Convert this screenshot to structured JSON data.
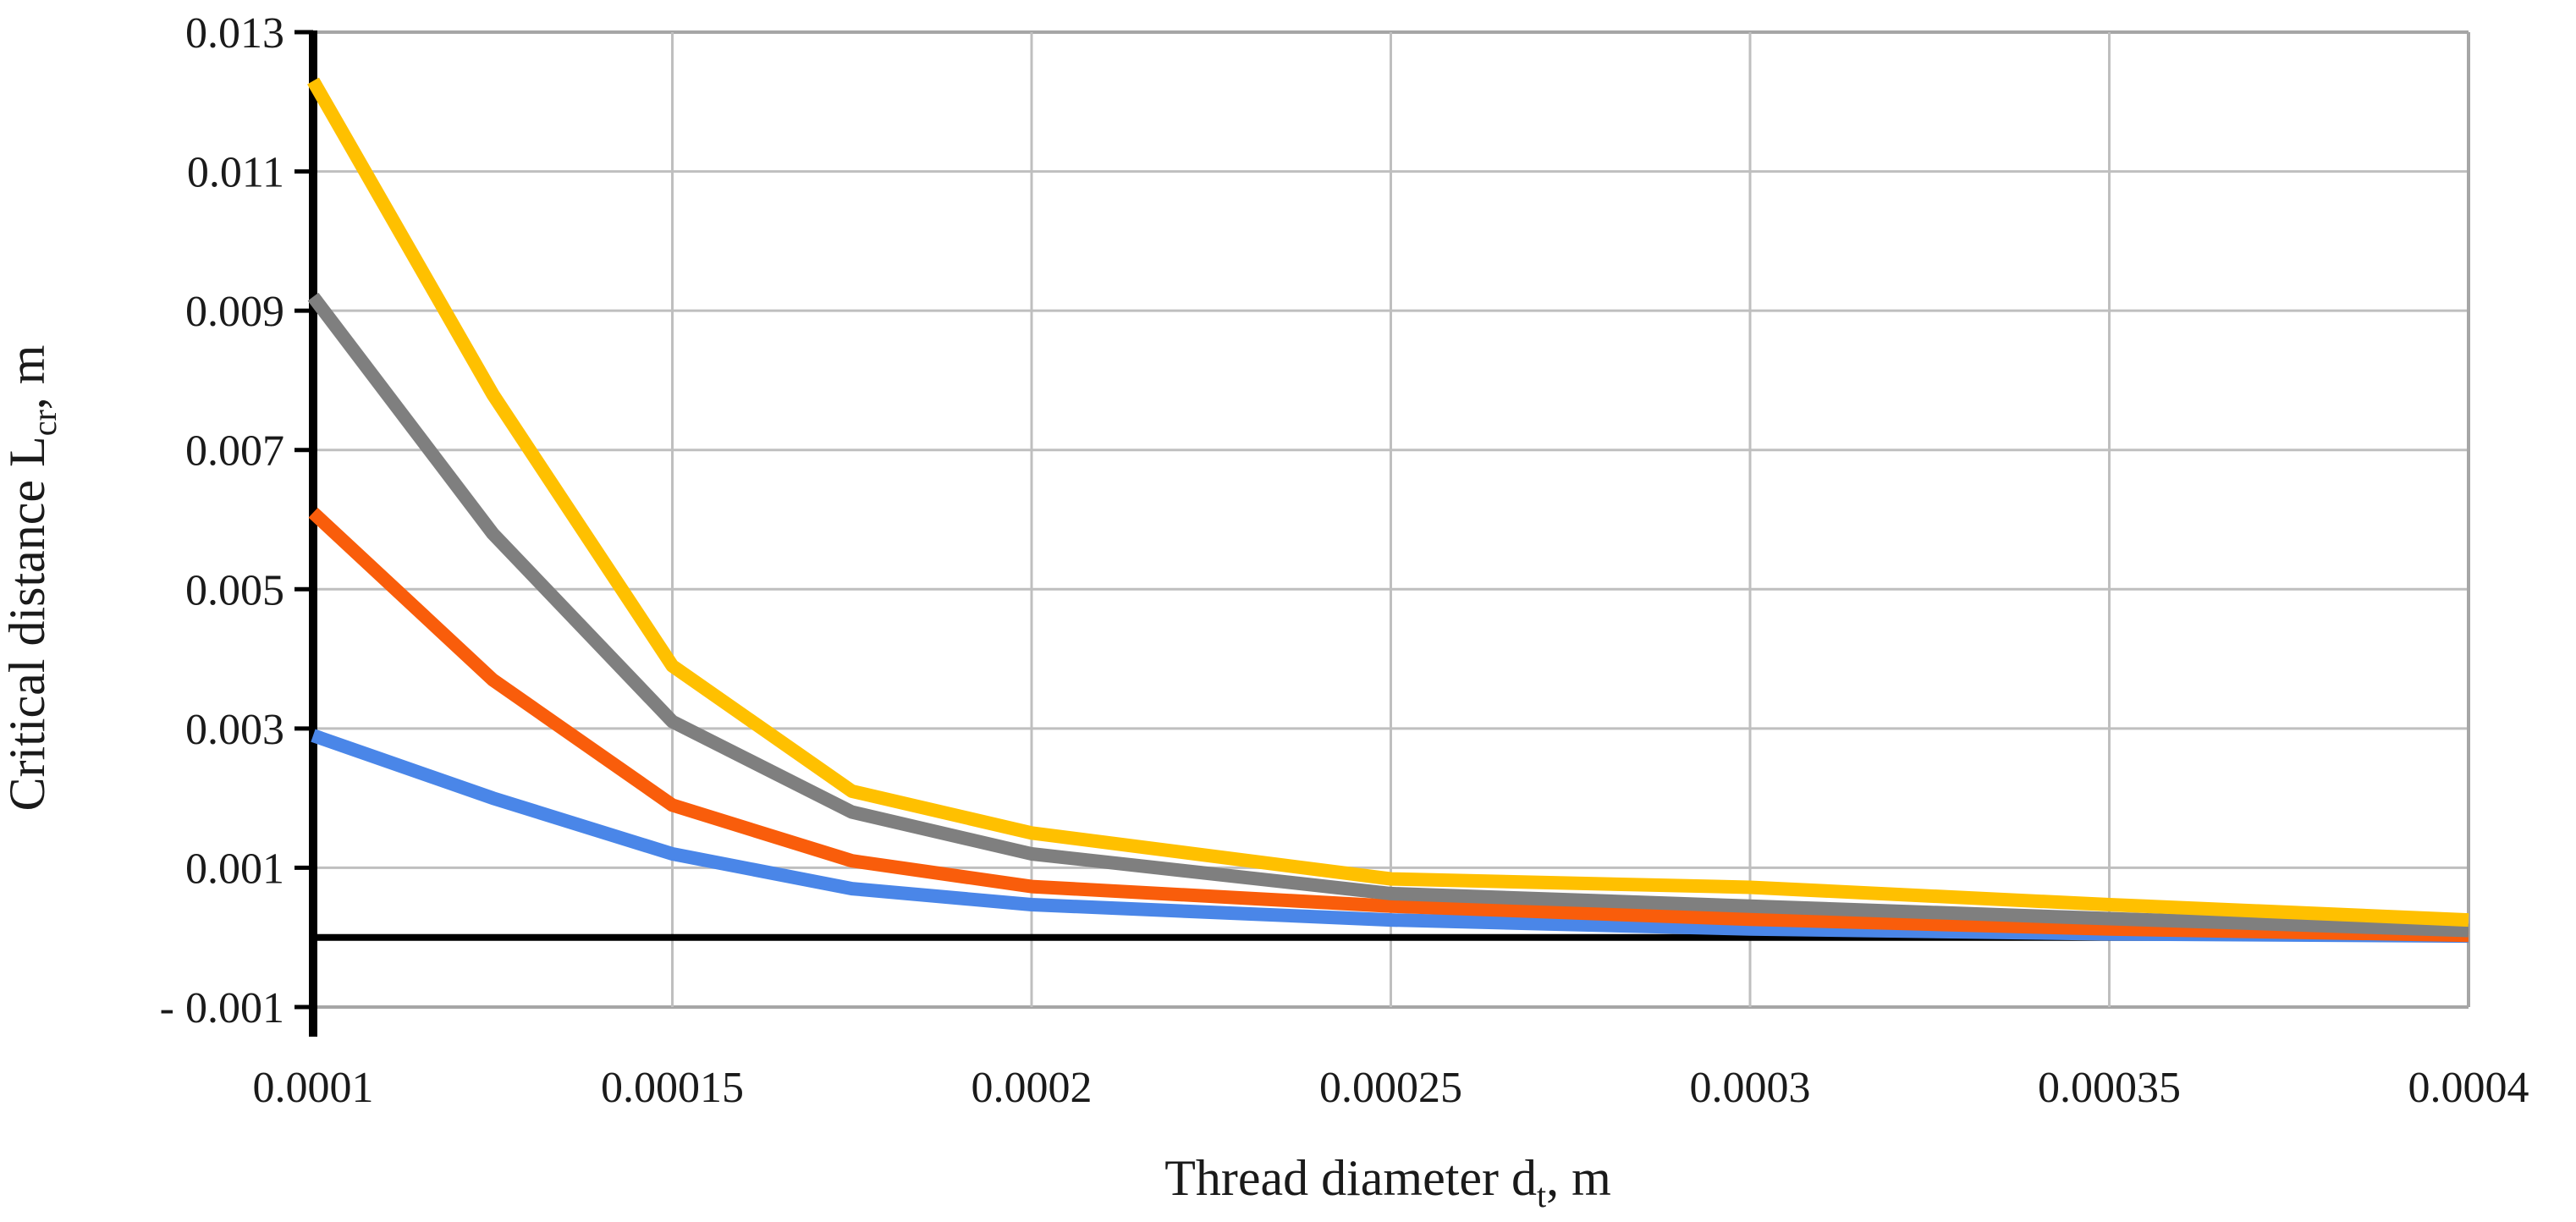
{
  "figure": {
    "background": "#FFFFFF",
    "text_color": "#1A1A1A",
    "grid_color": "#BFBFBF",
    "border_color": "#A6A6A6",
    "axis_color": "#000000"
  },
  "chart_data": {
    "type": "line",
    "title": "",
    "xlabel": {
      "main": "Thread diameter d",
      "sub": "t",
      "unit": ", m"
    },
    "ylabel": {
      "main": "Critical distance L",
      "sub": "cr",
      "unit": ", m"
    },
    "xlim": [
      0.0001,
      0.0004
    ],
    "ylim": [
      -0.001,
      0.013
    ],
    "grid": true,
    "legend": "none",
    "zero_line": 0,
    "x_ticks": [
      0.0001,
      0.00015,
      0.0002,
      0.00025,
      0.0003,
      0.00035,
      0.0004
    ],
    "x_tick_labels": [
      "0.0001",
      "0.00015",
      "0.0002",
      "0.00025",
      "0.0003",
      "0.00035",
      "0.0004"
    ],
    "y_ticks": [
      0.013,
      0.011,
      0.009,
      0.007,
      0.005,
      0.003,
      0.001,
      -0.001
    ],
    "y_tick_labels": [
      "0.013",
      "0.011",
      "0.009",
      "0.007",
      "0.005",
      "0.003",
      "0.001",
      "- 0.001"
    ],
    "x": [
      0.0001,
      0.000125,
      0.00015,
      0.000175,
      0.0002,
      0.00025,
      0.0003,
      0.00035,
      0.0004
    ],
    "series": [
      {
        "name": "blue",
        "color": "#4A86E8",
        "values": [
          0.0029,
          0.002,
          0.0012,
          0.0007,
          0.00047,
          0.00025,
          0.00012,
          5e-05,
          2e-05
        ]
      },
      {
        "name": "orange",
        "color": "#F95D0B",
        "values": [
          0.0061,
          0.0037,
          0.0019,
          0.0011,
          0.00073,
          0.00045,
          0.00026,
          0.00012,
          3e-05
        ]
      },
      {
        "name": "gray",
        "color": "#7F7F7F",
        "values": [
          0.0092,
          0.0058,
          0.0031,
          0.0018,
          0.0012,
          0.00063,
          0.00045,
          0.00027,
          0.0001
        ]
      },
      {
        "name": "yellow",
        "color": "#FFC000",
        "values": [
          0.0123,
          0.0078,
          0.0039,
          0.0021,
          0.0015,
          0.00084,
          0.00072,
          0.00047,
          0.00025
        ]
      }
    ]
  }
}
